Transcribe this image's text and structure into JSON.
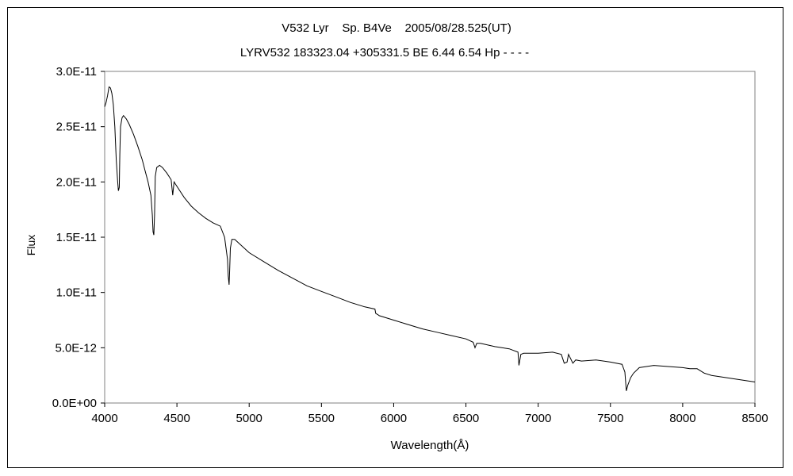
{
  "chart_data": {
    "type": "line",
    "title": "V532 Lyr    Sp. B4Ve    2005/08/28.525(UT)",
    "subtitle": "LYRV532 183323.04 +305331.5 BE 6.44 6.54 Hp - - - -",
    "xlabel": "Wavelength(Å)",
    "ylabel": "Flux",
    "xlim": [
      4000,
      8500
    ],
    "ylim": [
      0,
      3e-11
    ],
    "xticks": [
      4000,
      4500,
      5000,
      5500,
      6000,
      6500,
      7000,
      7500,
      8000,
      8500
    ],
    "xtick_labels": [
      "4000",
      "4500",
      "5000",
      "5500",
      "6000",
      "6500",
      "7000",
      "7500",
      "8000",
      "8500"
    ],
    "yticks": [
      0,
      5e-12,
      1e-11,
      1.5e-11,
      2e-11,
      2.5e-11,
      3e-11
    ],
    "ytick_labels": [
      "0.0E+00",
      "5.0E-12",
      "1.0E-11",
      "1.5E-11",
      "2.0E-11",
      "2.5E-11",
      "3.0E-11"
    ],
    "grid": false,
    "legend": "none",
    "series": [
      {
        "line_color": "#000000",
        "x": [
          4000,
          4010,
          4020,
          4030,
          4040,
          4050,
          4060,
          4070,
          4080,
          4090,
          4095,
          4101,
          4105,
          4110,
          4120,
          4130,
          4150,
          4170,
          4200,
          4230,
          4260,
          4280,
          4300,
          4320,
          4330,
          4335,
          4340,
          4345,
          4350,
          4360,
          4380,
          4400,
          4430,
          4460,
          4471,
          4480,
          4500,
          4550,
          4600,
          4650,
          4700,
          4750,
          4800,
          4830,
          4850,
          4855,
          4861,
          4865,
          4870,
          4880,
          4900,
          4950,
          5000,
          5100,
          5200,
          5300,
          5400,
          5500,
          5600,
          5700,
          5800,
          5870,
          5876,
          5890,
          5900,
          6000,
          6100,
          6200,
          6300,
          6400,
          6500,
          6550,
          6563,
          6575,
          6600,
          6700,
          6800,
          6860,
          6867,
          6880,
          6900,
          7000,
          7100,
          7160,
          7180,
          7200,
          7210,
          7240,
          7260,
          7300,
          7400,
          7500,
          7580,
          7600,
          7610,
          7620,
          7640,
          7660,
          7700,
          7750,
          7800,
          7900,
          8000,
          8050,
          8100,
          8150,
          8200,
          8300,
          8400,
          8500
        ],
        "y": [
          2.68e-11,
          2.72e-11,
          2.78e-11,
          2.86e-11,
          2.85e-11,
          2.8e-11,
          2.7e-11,
          2.5e-11,
          2.2e-11,
          2e-11,
          1.92e-11,
          1.95e-11,
          2.25e-11,
          2.5e-11,
          2.58e-11,
          2.6e-11,
          2.57e-11,
          2.52e-11,
          2.43e-11,
          2.32e-11,
          2.2e-11,
          2.1e-11,
          2e-11,
          1.88e-11,
          1.7e-11,
          1.55e-11,
          1.52e-11,
          1.7e-11,
          2.05e-11,
          2.13e-11,
          2.15e-11,
          2.13e-11,
          2.08e-11,
          2.02e-11,
          1.88e-11,
          2e-11,
          1.96e-11,
          1.86e-11,
          1.78e-11,
          1.72e-11,
          1.67e-11,
          1.63e-11,
          1.6e-11,
          1.5e-11,
          1.3e-11,
          1.15e-11,
          1.07e-11,
          1.2e-11,
          1.4e-11,
          1.48e-11,
          1.48e-11,
          1.42e-11,
          1.36e-11,
          1.28e-11,
          1.2e-11,
          1.13e-11,
          1.06e-11,
          1.01e-11,
          9.6e-12,
          9.1e-12,
          8.7e-12,
          8.5e-12,
          8.1e-12,
          8e-12,
          7.9e-12,
          7.5e-12,
          7.1e-12,
          6.7e-12,
          6.4e-12,
          6.1e-12,
          5.8e-12,
          5.5e-12,
          5e-12,
          5.4e-12,
          5.4e-12,
          5.1e-12,
          4.9e-12,
          4.6e-12,
          3.4e-12,
          4.4e-12,
          4.5e-12,
          4.5e-12,
          4.6e-12,
          4.4e-12,
          3.6e-12,
          3.7e-12,
          4.4e-12,
          3.6e-12,
          3.9e-12,
          3.8e-12,
          3.9e-12,
          3.7e-12,
          3.5e-12,
          2.8e-12,
          1.1e-12,
          1.6e-12,
          2.3e-12,
          2.7e-12,
          3.2e-12,
          3.3e-12,
          3.4e-12,
          3.3e-12,
          3.2e-12,
          3.1e-12,
          3.1e-12,
          2.7e-12,
          2.5e-12,
          2.3e-12,
          2.1e-12,
          1.9e-12
        ]
      }
    ]
  }
}
